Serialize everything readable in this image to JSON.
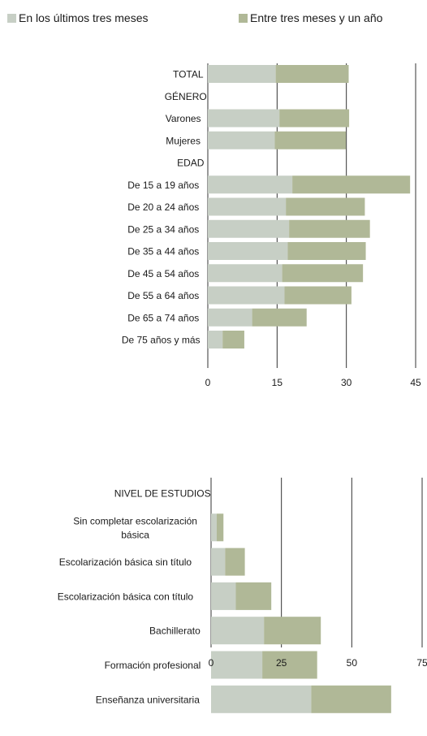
{
  "colors": {
    "recent": "#c7cfc5",
    "year": "#b0b897",
    "axis": "#333333",
    "text": "#1a1a1a"
  },
  "legend": [
    {
      "label": "En los últimos tres meses",
      "color": "#c7cfc5"
    },
    {
      "label": "Entre tres meses y un año",
      "color": "#b0b897"
    }
  ],
  "chart_data": [
    {
      "type": "bar",
      "orientation": "horizontal",
      "stacked": true,
      "categories": [
        "TOTAL",
        "GÉNERO",
        "Varones",
        "Mujeres",
        "EDAD",
        "De 15 a 19 años",
        "De 20 a 24 años",
        "De 25 a 34 años",
        "De 35 a 44 años",
        "De 45 a 54 años",
        "De 55 a 64 años",
        "De 65 a 74 años",
        "De 75 años y más"
      ],
      "header_categories": [
        "GÉNERO",
        "EDAD"
      ],
      "series": [
        {
          "name": "En los últimos tres meses",
          "values": [
            14.7,
            null,
            15.5,
            14.5,
            null,
            18.3,
            16.9,
            17.6,
            17.3,
            16.1,
            16.6,
            9.6,
            3.2
          ]
        },
        {
          "name": "Entre tres meses y un año",
          "values": [
            15.8,
            null,
            15.1,
            15.4,
            null,
            25.5,
            17.1,
            17.5,
            16.9,
            17.5,
            14.5,
            11.8,
            4.7
          ]
        }
      ],
      "xlim": [
        0,
        45
      ],
      "ticks": [
        0,
        15,
        30,
        45
      ],
      "tick_labels": [
        "0",
        "15",
        "30",
        "45"
      ],
      "grid": true,
      "legend": "top"
    },
    {
      "type": "bar",
      "orientation": "horizontal",
      "stacked": true,
      "categories": [
        [
          "NIVEL DE ESTUDIOS"
        ],
        [
          "Sin completar escolarización",
          "básica"
        ],
        [
          "Escolarización básica sin título"
        ],
        [
          "Escolarización básica con título"
        ],
        [
          "Bachillerato"
        ],
        [
          "Formación profesional"
        ],
        [
          "Enseñanza universitaria"
        ]
      ],
      "header_categories": [
        "NIVEL DE ESTUDIOS"
      ],
      "series": [
        {
          "name": "En los últimos tres meses",
          "values": [
            null,
            2.0,
            5.0,
            8.8,
            18.8,
            18.2,
            35.6
          ]
        },
        {
          "name": "Entre tres meses y un año",
          "values": [
            null,
            2.4,
            7.0,
            12.6,
            20.2,
            19.5,
            28.4
          ]
        }
      ],
      "xlim": [
        0,
        75
      ],
      "ticks": [
        0,
        25,
        50,
        75
      ],
      "tick_labels": [
        "0",
        "25",
        "50",
        "75"
      ],
      "grid": true,
      "legend": "top"
    }
  ]
}
